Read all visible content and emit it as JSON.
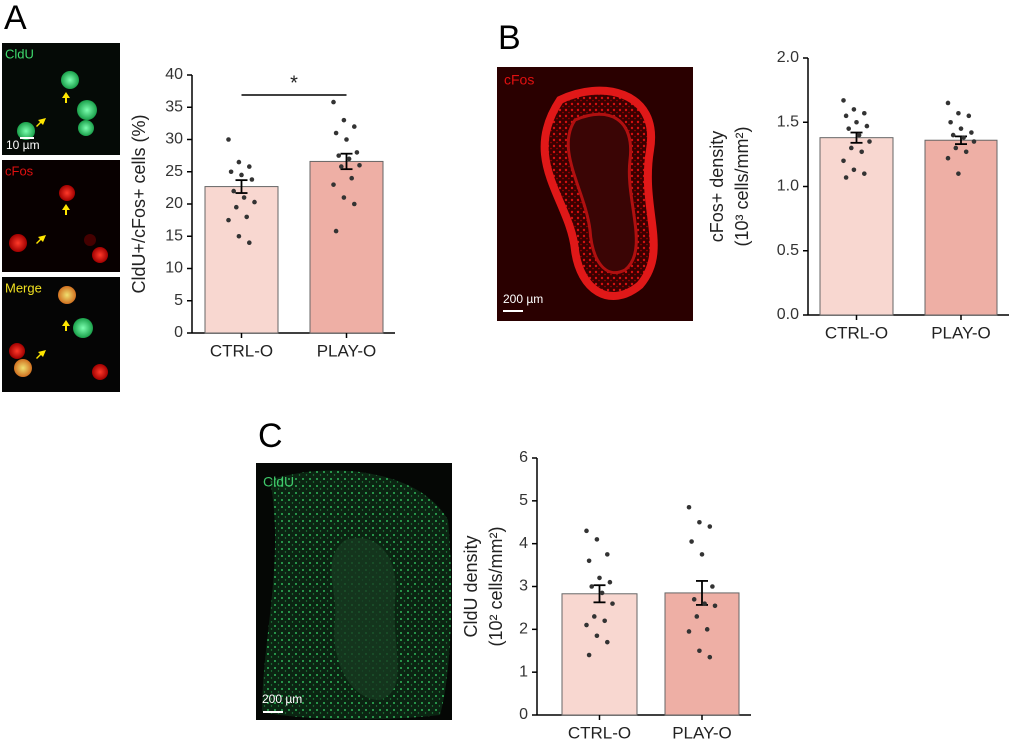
{
  "figure": {
    "panels": [
      {
        "letter": "A",
        "images": [
          {
            "label": "CldU"
          },
          {
            "label": "cFos"
          },
          {
            "label": "Merge"
          }
        ],
        "scale_bar": "10 µm"
      },
      {
        "letter": "B",
        "images": [
          {
            "label": "cFos"
          }
        ],
        "scale_bar": "200 µm"
      },
      {
        "letter": "C",
        "images": [
          {
            "label": "CldU"
          }
        ],
        "scale_bar": "200 µm"
      }
    ]
  },
  "chart_data": [
    {
      "type": "bar",
      "y_label": [
        "CldU+/cFos+ cells (%)"
      ],
      "categories": [
        "CTRL-O",
        "PLAY-O"
      ],
      "values": [
        22.7,
        26.6
      ],
      "errors": [
        1.0,
        1.2
      ],
      "colors": [
        "#f8d7d0",
        "#eeafa5"
      ],
      "points": [
        [
          30,
          26.5,
          25.8,
          25,
          24.5,
          23.8,
          22,
          21,
          20.3,
          19.5,
          18,
          17.5,
          15,
          14
        ],
        [
          35.8,
          33,
          32,
          31,
          30,
          28,
          27.5,
          27,
          26,
          25.8,
          24,
          23,
          21,
          20,
          15.8
        ]
      ],
      "ylim": [
        0,
        40
      ],
      "yticks": [
        0,
        5,
        10,
        15,
        20,
        25,
        30,
        35,
        40
      ],
      "annotation": "*"
    },
    {
      "type": "bar",
      "y_label": [
        "cFos+ density",
        "(10³ cells/mm²)"
      ],
      "categories": [
        "CTRL-O",
        "PLAY-O"
      ],
      "values": [
        1.38,
        1.36
      ],
      "errors": [
        0.04,
        0.03
      ],
      "colors": [
        "#f8d7d0",
        "#eeafa5"
      ],
      "points": [
        [
          1.67,
          1.6,
          1.57,
          1.55,
          1.5,
          1.47,
          1.45,
          1.4,
          1.35,
          1.3,
          1.27,
          1.2,
          1.13,
          1.1,
          1.07
        ],
        [
          1.65,
          1.57,
          1.55,
          1.5,
          1.45,
          1.42,
          1.4,
          1.38,
          1.35,
          1.3,
          1.27,
          1.22,
          1.1
        ]
      ],
      "ylim": [
        0,
        2
      ],
      "yticks": [
        {
          "value": 0,
          "label": "0.0"
        },
        0.5,
        {
          "value": 1,
          "label": "1.0"
        },
        1.5,
        {
          "value": 2,
          "label": "2.0"
        }
      ]
    },
    {
      "type": "bar",
      "y_label": [
        "CldU density",
        "(10² cells/mm²)"
      ],
      "categories": [
        "CTRL-O",
        "PLAY-O"
      ],
      "values": [
        2.83,
        2.85
      ],
      "errors": [
        0.2,
        0.28
      ],
      "colors": [
        "#f8d7d0",
        "#eeafa5"
      ],
      "points": [
        [
          4.3,
          4.1,
          3.75,
          3.6,
          3.2,
          3.1,
          3.0,
          2.85,
          2.6,
          2.3,
          2.2,
          2.1,
          1.85,
          1.7,
          1.4
        ],
        [
          4.85,
          4.5,
          4.4,
          4.05,
          3.75,
          3.0,
          2.7,
          2.6,
          2.55,
          2.3,
          2.0,
          1.95,
          1.5,
          1.35
        ]
      ],
      "ylim": [
        0,
        6
      ],
      "yticks": [
        0,
        1,
        2,
        3,
        4,
        5,
        6
      ]
    }
  ]
}
